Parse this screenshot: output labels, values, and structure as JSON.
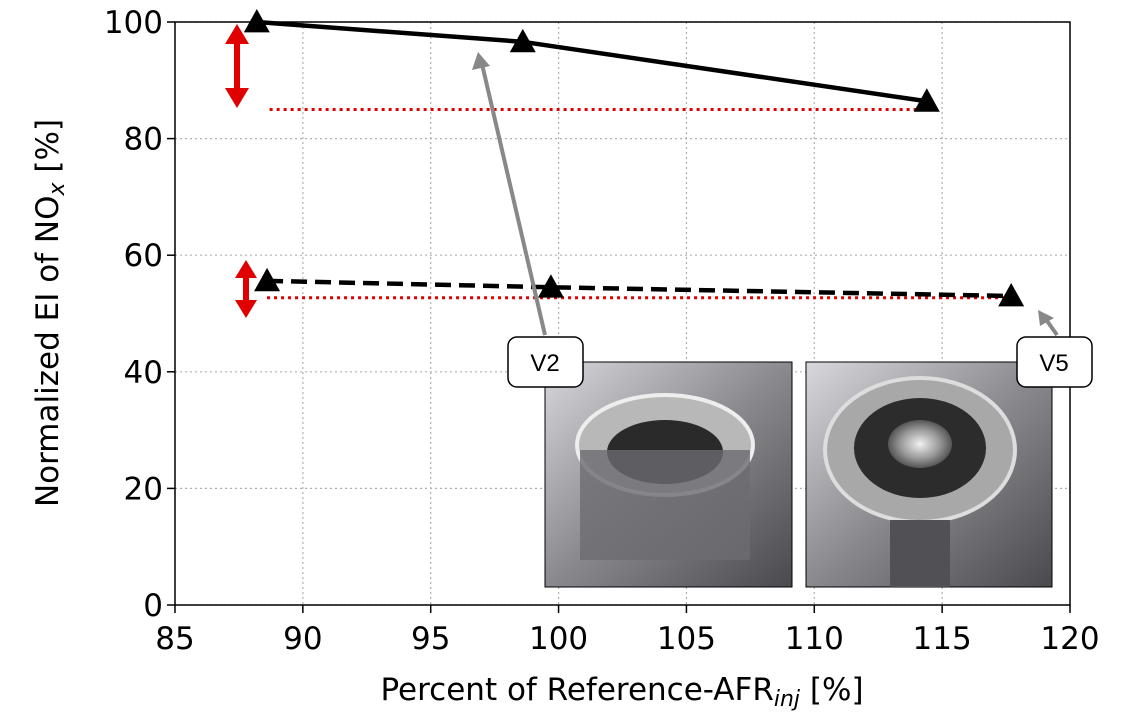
{
  "chart_data": {
    "type": "line",
    "xlabel": {
      "text": "Percent of Reference-AFR",
      "sub": "inj",
      "suffix": " [%]"
    },
    "ylabel": {
      "text": "Normalized EI of NO",
      "sub": "x",
      "suffix": " [%]"
    },
    "xlim": [
      85,
      120
    ],
    "xticks": [
      85,
      90,
      95,
      100,
      105,
      110,
      115,
      120
    ],
    "ylim": [
      0,
      100
    ],
    "yticks": [
      0,
      20,
      40,
      60,
      80,
      100
    ],
    "grid": true,
    "series": [
      {
        "color": "#000000",
        "linestyle": "solid",
        "marker": "triangle",
        "x": [
          88.2,
          98.6,
          114.4
        ],
        "values": [
          100,
          96.6,
          86.4
        ]
      },
      {
        "color": "#000000",
        "linestyle": "dashed",
        "marker": "triangle",
        "x": [
          88.6,
          99.7,
          117.7
        ],
        "values": [
          55.6,
          54.5,
          53
        ]
      }
    ],
    "reference_lines": [
      {
        "color": "#e00000",
        "x": [
          88.7,
          114.3
        ],
        "y": 85
      },
      {
        "color": "#e00000",
        "x": [
          88.6,
          117.6
        ],
        "y": 52.7
      }
    ],
    "annotations": [
      {
        "text": "V2"
      },
      {
        "text": "V5"
      }
    ]
  }
}
